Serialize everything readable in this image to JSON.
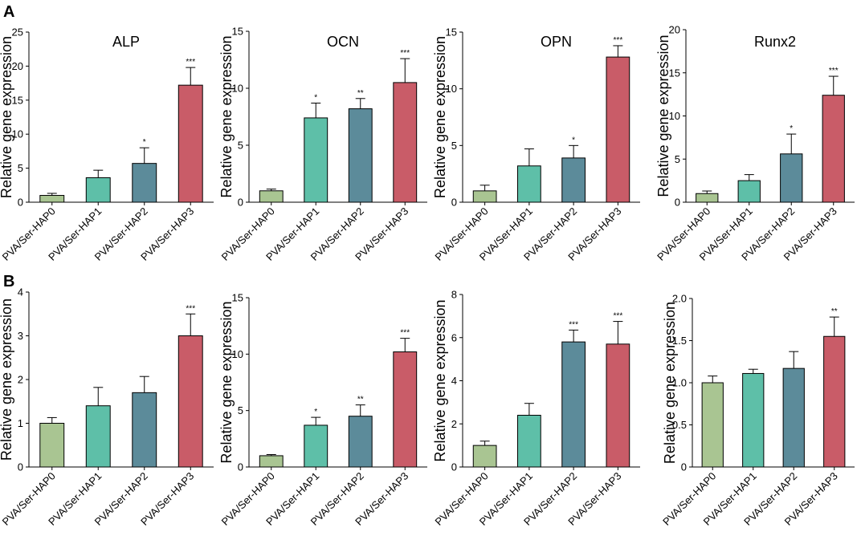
{
  "figure": {
    "panel_labels": [
      "A",
      "B"
    ]
  },
  "chart_data": [
    {
      "type": "bar",
      "panel": "A",
      "title": "ALP",
      "ylabel": "Relative gene expression",
      "categories": [
        "PVA/Ser-HAP0",
        "PVA/Ser-HAP1",
        "PVA/Ser-HAP2",
        "PVA/Ser-HAP3"
      ],
      "values": [
        1.0,
        3.6,
        5.7,
        17.2
      ],
      "errors": [
        0.3,
        1.1,
        2.3,
        2.6
      ],
      "significance": [
        "",
        "",
        "*",
        "***"
      ],
      "ylim": [
        0,
        25
      ],
      "yticks": [
        0,
        5,
        10,
        15,
        20,
        25
      ]
    },
    {
      "type": "bar",
      "panel": "A",
      "title": "OCN",
      "ylabel": "Relative gene expression",
      "categories": [
        "PVA/Ser-HAP0",
        "PVA/Ser-HAP1",
        "PVA/Ser-HAP2",
        "PVA/Ser-HAP3"
      ],
      "values": [
        1.0,
        7.4,
        8.2,
        10.5
      ],
      "errors": [
        0.15,
        1.3,
        0.9,
        2.1
      ],
      "significance": [
        "",
        "*",
        "**",
        "***"
      ],
      "ylim": [
        0,
        15
      ],
      "yticks": [
        0,
        5,
        10,
        15
      ]
    },
    {
      "type": "bar",
      "panel": "A",
      "title": "OPN",
      "ylabel": "Relative gene expression",
      "categories": [
        "PVA/Ser-HAP0",
        "PVA/Ser-HAP1",
        "PVA/Ser-HAP2",
        "PVA/Ser-HAP3"
      ],
      "values": [
        1.0,
        3.2,
        3.9,
        12.8
      ],
      "errors": [
        0.5,
        1.5,
        1.1,
        1.0
      ],
      "significance": [
        "",
        "",
        "*",
        "***"
      ],
      "ylim": [
        0,
        15
      ],
      "yticks": [
        0,
        5,
        10,
        15
      ]
    },
    {
      "type": "bar",
      "panel": "A",
      "title": "Runx2",
      "ylabel": "Relative gene expression",
      "categories": [
        "PVA/Ser-HAP0",
        "PVA/Ser-HAP1",
        "PVA/Ser-HAP2",
        "PVA/Ser-HAP3"
      ],
      "values": [
        1.0,
        2.5,
        5.6,
        12.4
      ],
      "errors": [
        0.3,
        0.7,
        2.3,
        2.2
      ],
      "significance": [
        "",
        "",
        "*",
        "***"
      ],
      "ylim": [
        0,
        20
      ],
      "yticks": [
        0,
        5,
        10,
        15,
        20
      ]
    },
    {
      "type": "bar",
      "panel": "B",
      "title": "",
      "ylabel": "Relative gene expression",
      "categories": [
        "PVA/Ser-HAP0",
        "PVA/Ser-HAP1",
        "PVA/Ser-HAP2",
        "PVA/Ser-HAP3"
      ],
      "values": [
        1.0,
        1.4,
        1.7,
        3.0
      ],
      "errors": [
        0.13,
        0.42,
        0.37,
        0.5
      ],
      "significance": [
        "",
        "",
        "",
        "***"
      ],
      "ylim": [
        0,
        4
      ],
      "yticks": [
        0,
        1,
        2,
        3,
        4
      ]
    },
    {
      "type": "bar",
      "panel": "B",
      "title": "",
      "ylabel": "Relative gene expression",
      "categories": [
        "PVA/Ser-HAP0",
        "PVA/Ser-HAP1",
        "PVA/Ser-HAP2",
        "PVA/Ser-HAP3"
      ],
      "values": [
        1.0,
        3.7,
        4.5,
        10.2
      ],
      "errors": [
        0.1,
        0.7,
        1.0,
        1.2
      ],
      "significance": [
        "",
        "*",
        "**",
        "***"
      ],
      "ylim": [
        0,
        15
      ],
      "yticks": [
        0,
        5,
        10,
        15
      ]
    },
    {
      "type": "bar",
      "panel": "B",
      "title": "",
      "ylabel": "Relative gene expression",
      "categories": [
        "PVA/Ser-HAP0",
        "PVA/Ser-HAP1",
        "PVA/Ser-HAP2",
        "PVA/Ser-HAP3"
      ],
      "values": [
        1.0,
        2.4,
        5.8,
        5.7
      ],
      "errors": [
        0.2,
        0.55,
        0.55,
        1.05
      ],
      "significance": [
        "",
        "",
        "***",
        "***"
      ],
      "ylim": [
        0,
        8
      ],
      "yticks": [
        0,
        2,
        4,
        6,
        8
      ]
    },
    {
      "type": "bar",
      "panel": "B",
      "title": "",
      "ylabel": "Relative gene expression",
      "categories": [
        "PVA/Ser-HAP0",
        "PVA/Ser-HAP1",
        "PVA/Ser-HAP2",
        "PVA/Ser-HAP3"
      ],
      "values": [
        1.0,
        1.11,
        1.17,
        1.55
      ],
      "errors": [
        0.08,
        0.05,
        0.2,
        0.23
      ],
      "significance": [
        "",
        "",
        "",
        "**"
      ],
      "ylim": [
        0,
        2.0
      ],
      "yticks": [
        0,
        0.5,
        1.0,
        1.5,
        2.0
      ],
      "tick_decimals": 1
    }
  ],
  "colors": [
    "#a9c592",
    "#5ebfa8",
    "#5c8b9a",
    "#c95c68"
  ]
}
